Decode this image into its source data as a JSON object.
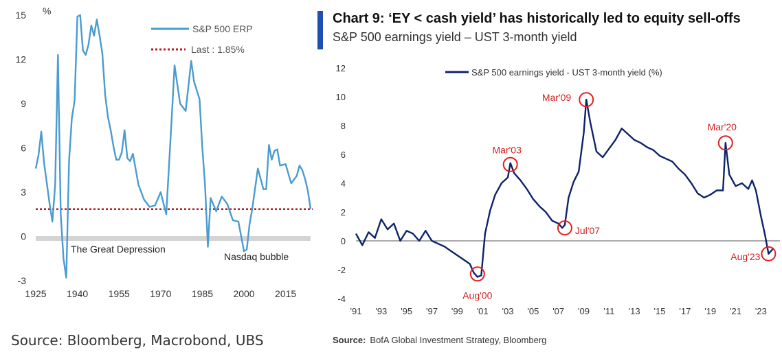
{
  "chart_data": [
    {
      "type": "line",
      "ylabel": "%",
      "ylim": [
        -3,
        15
      ],
      "yticks": [
        "15",
        "12",
        "9",
        "6",
        "3",
        "0",
        "-3"
      ],
      "xlim": [
        1925,
        2024
      ],
      "xticks": [
        "1925",
        "1940",
        "1955",
        "1970",
        "1985",
        "2000",
        "2015"
      ],
      "legend": {
        "series_label": "S&P 500 ERP",
        "last_label": "Last : 1.85%",
        "placement": "top-right"
      },
      "last_value": 1.85,
      "annotations": [
        "The Great Depression",
        "Nasdaq bubble"
      ],
      "series": [
        {
          "name": "S&P 500 ERP",
          "color": "#4a9bd0",
          "x": [
            1925,
            1926,
            1927,
            1928,
            1929,
            1930,
            1931,
            1932,
            1933,
            1934,
            1935,
            1936,
            1937,
            1938,
            1939,
            1940,
            1941,
            1942,
            1943,
            1944,
            1945,
            1946,
            1947,
            1948,
            1949,
            1950,
            1951,
            1952,
            1953,
            1954,
            1955,
            1956,
            1957,
            1958,
            1959,
            1960,
            1962,
            1964,
            1966,
            1968,
            1970,
            1972,
            1974,
            1975,
            1977,
            1979,
            1981,
            1982,
            1984,
            1985,
            1986,
            1987,
            1988,
            1990,
            1992,
            1994,
            1996,
            1998,
            2000,
            2001,
            2002,
            2003,
            2005,
            2007,
            2008,
            2009,
            2010,
            2011,
            2012,
            2013,
            2015,
            2017,
            2019,
            2020,
            2021,
            2022,
            2023,
            2024
          ],
          "y": [
            4.6,
            5.5,
            7.1,
            5.0,
            3.6,
            2.2,
            1.0,
            3.5,
            12.3,
            1.5,
            -1.5,
            -2.8,
            5.1,
            8.0,
            9.2,
            14.9,
            15.0,
            12.6,
            12.3,
            13.0,
            14.3,
            13.6,
            14.7,
            13.6,
            12.4,
            9.6,
            8.1,
            7.2,
            6.1,
            5.2,
            5.2,
            5.7,
            7.2,
            5.3,
            5.1,
            5.6,
            3.5,
            2.5,
            2.0,
            2.1,
            3.0,
            1.5,
            8.1,
            11.6,
            9.0,
            8.5,
            11.9,
            10.5,
            9.3,
            6.0,
            3.4,
            -0.7,
            2.6,
            1.7,
            2.7,
            2.2,
            1.1,
            1.0,
            -1.0,
            -0.9,
            0.8,
            1.9,
            4.6,
            3.2,
            3.2,
            6.2,
            5.2,
            5.8,
            5.9,
            4.8,
            4.9,
            3.6,
            4.1,
            4.8,
            4.5,
            3.9,
            3.1,
            1.85
          ]
        }
      ]
    },
    {
      "type": "line",
      "title": "Chart 9: ‘EY < cash yield’ has historically led to equity sell-offs",
      "subtitle": "S&P 500 earnings yield – UST 3-month yield",
      "ylim": [
        -4,
        12
      ],
      "yticks": [
        "12",
        "10",
        "8",
        "6",
        "4",
        "2",
        "0",
        "-2",
        "-4"
      ],
      "xlim": [
        1991,
        2024.5
      ],
      "xticks": [
        "'91",
        "'93",
        "'95",
        "'97",
        "'99",
        "'01",
        "'03",
        "'05",
        "'07",
        "'09",
        "'11",
        "'13",
        "'15",
        "'17",
        "'19",
        "'21",
        "'23"
      ],
      "legend": {
        "label": "S&P 500 earnings yield - UST 3-month yield (%)",
        "placement": "top"
      },
      "annotations": [
        {
          "label": "Aug'00",
          "x": 2000.6,
          "y": -2.3
        },
        {
          "label": "Mar'03",
          "x": 2003.2,
          "y": 5.3
        },
        {
          "label": "Jul'07",
          "x": 2007.5,
          "y": 0.9
        },
        {
          "label": "Mar'09",
          "x": 2009.2,
          "y": 9.8
        },
        {
          "label": "Mar'20",
          "x": 2020.2,
          "y": 6.8
        },
        {
          "label": "Aug'23",
          "x": 2023.6,
          "y": -0.9
        }
      ],
      "series": [
        {
          "name": "S&P 500 earnings yield - UST 3-month yield (%)",
          "color": "#0d2368",
          "x": [
            1991,
            1991.5,
            1992,
            1992.5,
            1993,
            1993.5,
            1994,
            1994.5,
            1995,
            1995.5,
            1996,
            1996.5,
            1997,
            1997.5,
            1998,
            1998.5,
            1999,
            1999.5,
            2000,
            2000.3,
            2000.6,
            2000.9,
            2001.2,
            2001.6,
            2002,
            2002.5,
            2003,
            2003.2,
            2003.5,
            2004,
            2004.5,
            2005,
            2005.5,
            2006,
            2006.5,
            2007,
            2007.3,
            2007.5,
            2007.8,
            2008.2,
            2008.6,
            2009,
            2009.2,
            2009.5,
            2010,
            2010.5,
            2011,
            2011.5,
            2012,
            2012.5,
            2013,
            2013.5,
            2014,
            2014.5,
            2015,
            2015.5,
            2016,
            2016.5,
            2017,
            2017.5,
            2018,
            2018.5,
            2019,
            2019.5,
            2020,
            2020.2,
            2020.5,
            2021,
            2021.5,
            2022,
            2022.3,
            2022.6,
            2023,
            2023.3,
            2023.6,
            2024
          ],
          "y": [
            0.5,
            -0.3,
            0.6,
            0.2,
            1.5,
            0.8,
            1.2,
            0.0,
            0.7,
            0.5,
            0.0,
            0.7,
            0.0,
            -0.2,
            -0.4,
            -0.7,
            -1.0,
            -1.3,
            -1.6,
            -2.2,
            -2.5,
            -2.4,
            0.5,
            2.1,
            3.2,
            4.0,
            4.4,
            5.4,
            4.7,
            4.2,
            3.6,
            2.9,
            2.4,
            2.0,
            1.4,
            1.2,
            0.9,
            1.1,
            3.0,
            4.1,
            4.8,
            7.5,
            9.8,
            8.3,
            6.2,
            5.8,
            6.4,
            7.0,
            7.8,
            7.4,
            7.0,
            6.8,
            6.5,
            6.3,
            5.9,
            5.7,
            5.5,
            5.0,
            4.6,
            4.0,
            3.3,
            3.0,
            3.2,
            3.5,
            3.5,
            6.8,
            4.6,
            3.8,
            4.0,
            3.6,
            4.2,
            3.5,
            1.7,
            0.5,
            -0.9,
            -0.5
          ]
        }
      ]
    }
  ],
  "sources": {
    "left": "Source: Bloomberg, Macrobond, UBS",
    "right_label": "Source:",
    "right_text": "BofA Global Investment Strategy, Bloomberg"
  }
}
